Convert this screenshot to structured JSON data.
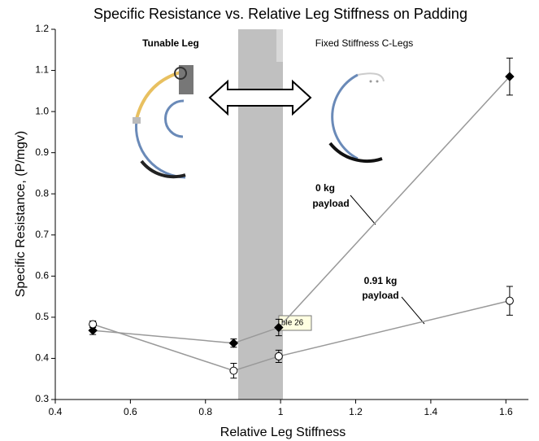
{
  "chart_data": {
    "type": "line",
    "title": "Specific Resistance vs. Relative Leg Stiffness on Padding",
    "x_label": "Relative Leg Stiffness",
    "y_label": "Specific Resistance, (P/mgv)",
    "x": [
      0.5,
      0.875,
      0.995,
      1.61
    ],
    "series": [
      {
        "name": "0 kg payload",
        "color": "#000000",
        "marker": "diamond",
        "values": [
          0.468,
          0.437,
          0.475,
          1.085
        ],
        "errors": [
          0.01,
          0.01,
          0.02,
          0.045
        ]
      },
      {
        "name": "0.91 kg payload",
        "color": "#ffffff",
        "marker": "circle",
        "values": [
          0.483,
          0.37,
          0.405,
          0.54
        ],
        "errors": [
          0.008,
          0.018,
          0.015,
          0.035
        ]
      }
    ],
    "annotations": {
      "left": "Tunable Leg",
      "right": "Fixed Stiffness C-Legs",
      "payload0_a": "0 kg",
      "payload0_b": "payload",
      "payload1_a": "0.91 kg",
      "payload1_b": "payload",
      "tooltip": "ble 26"
    },
    "xlim": [
      0.4,
      1.66
    ],
    "ylim": [
      0.3,
      1.2
    ],
    "xticks": [
      0.4,
      0.6,
      0.8,
      1,
      1.2,
      1.4,
      1.6
    ],
    "yticks": [
      0.3,
      0.4,
      0.5,
      0.6,
      0.7,
      0.8,
      0.9,
      {
        "value": 1,
        "label": "1.0"
      },
      1.1,
      1.2
    ],
    "grid": false,
    "line_color": "#999999"
  }
}
